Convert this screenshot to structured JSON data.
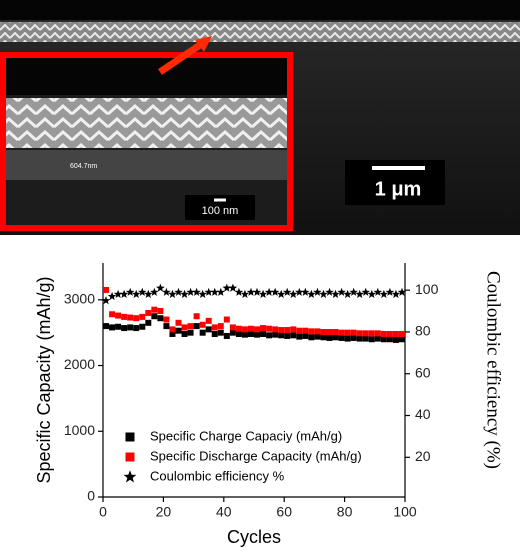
{
  "figure_image": {
    "main_scale": "1 μm",
    "inset_scale": "100 nm",
    "inset_measure": "604.7nm"
  },
  "chart_data": {
    "type": "scatter",
    "xlabel": "Cycles",
    "ylabel": "Specific Capacity (mAh/g)",
    "y2label": "Coulombic efficiency (%)",
    "xlim": [
      0,
      100
    ],
    "xticks": [
      0,
      20,
      40,
      60,
      80,
      100
    ],
    "ylim": [
      0,
      3560
    ],
    "yticks": [
      0,
      1000,
      2000,
      3000
    ],
    "y2lim": [
      1,
      113
    ],
    "y2ticks": [
      20,
      40,
      60,
      80,
      100
    ],
    "x": [
      1,
      3,
      5,
      7,
      9,
      11,
      13,
      15,
      17,
      19,
      21,
      23,
      25,
      27,
      29,
      31,
      33,
      35,
      37,
      39,
      41,
      43,
      45,
      47,
      49,
      51,
      53,
      55,
      57,
      59,
      61,
      63,
      65,
      67,
      69,
      71,
      73,
      75,
      77,
      79,
      81,
      83,
      85,
      87,
      89,
      91,
      93,
      95,
      97,
      99
    ],
    "series": [
      {
        "name": "Specific Charge Capaciy (mAh/g)",
        "color": "#000000",
        "marker": "square",
        "values": [
          2600,
          2580,
          2590,
          2570,
          2580,
          2570,
          2590,
          2650,
          2750,
          2720,
          2600,
          2480,
          2530,
          2480,
          2500,
          2600,
          2500,
          2550,
          2480,
          2500,
          2450,
          2500,
          2480,
          2470,
          2480,
          2470,
          2480,
          2460,
          2470,
          2460,
          2450,
          2460,
          2440,
          2450,
          2430,
          2440,
          2430,
          2420,
          2430,
          2420,
          2410,
          2420,
          2410,
          2410,
          2400,
          2410,
          2400,
          2400,
          2390,
          2400
        ]
      },
      {
        "name": "Specific Discharge Capacity (mAh/g)",
        "color": "#ff0000",
        "marker": "square",
        "values": [
          3150,
          2780,
          2760,
          2740,
          2730,
          2720,
          2740,
          2800,
          2850,
          2830,
          2700,
          2550,
          2650,
          2580,
          2600,
          2750,
          2620,
          2680,
          2580,
          2600,
          2700,
          2580,
          2560,
          2550,
          2560,
          2550,
          2570,
          2560,
          2550,
          2540,
          2540,
          2550,
          2530,
          2530,
          2520,
          2520,
          2510,
          2510,
          2510,
          2500,
          2500,
          2500,
          2490,
          2490,
          2490,
          2490,
          2480,
          2480,
          2480,
          2480
        ]
      },
      {
        "name": "Coulombic efficiency %",
        "color": "#000000",
        "marker": "star",
        "axis": "y2",
        "values": [
          95,
          97,
          98,
          98,
          99,
          98,
          99,
          98,
          99,
          101,
          99,
          98,
          99,
          98,
          99,
          99,
          98,
          99,
          99,
          99,
          101,
          101,
          99,
          98,
          99,
          99,
          98,
          99,
          99,
          98,
          99,
          98,
          99,
          99,
          98,
          99,
          98,
          99,
          98,
          99,
          98,
          99,
          98,
          99,
          98,
          99,
          98,
          99,
          98,
          99
        ]
      }
    ]
  }
}
